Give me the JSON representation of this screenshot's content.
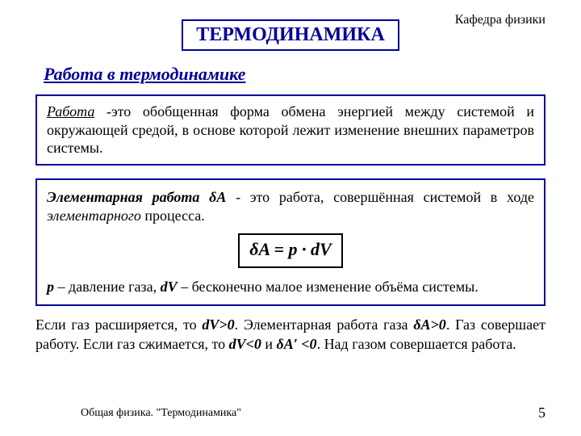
{
  "header": {
    "department": "Кафедра физики",
    "title": "ТЕРМОДИНАМИКА",
    "subtitle": "Работа в термодинамике",
    "title_color": "#000099",
    "title_border_color": "#000099"
  },
  "definition1": {
    "term": "Работа",
    "body": " -это обобщенная форма обмена энергией между системой и окружающей средой, в основе которой лежит изменение внешних параметров системы.",
    "border_color": "#000099"
  },
  "definition2": {
    "lead": "Элементарная работа δА",
    "after_lead": " - это работа, совершённая системой в ходе ",
    "ital_word": "элементарного",
    "after_ital": " процесса.",
    "formula": "δA  =  p · dV",
    "varline_prefix": " ",
    "var_p": "p",
    "var_p_desc": " – давление газа, ",
    "var_dV": "dV",
    "var_dV_desc": " – бесконечно малое изменение объёма системы.",
    "border_color": "#000099",
    "formula_border_color": "#000000"
  },
  "paragraph": {
    "t1": "Если газ расширяется, то ",
    "v1": "dV>0",
    "t2": ". Элементарная работа газа ",
    "v2": "δА>0",
    "t3": ". Газ совершает работу. Если газ сжимается, то ",
    "v3": "dV<0",
    "t4": " и ",
    "v4": "δА′ <0",
    "t5": ". Над газом совершается работа."
  },
  "footer": {
    "ref": "Общая физика. \"Термодинамика\"",
    "page": "5"
  },
  "style": {
    "background": "#ffffff",
    "text_color": "#000000",
    "accent": "#000099",
    "body_fontsize": 18,
    "title_fontsize": 24,
    "subtitle_fontsize": 22,
    "formula_fontsize": 22,
    "font_family": "Times New Roman"
  }
}
